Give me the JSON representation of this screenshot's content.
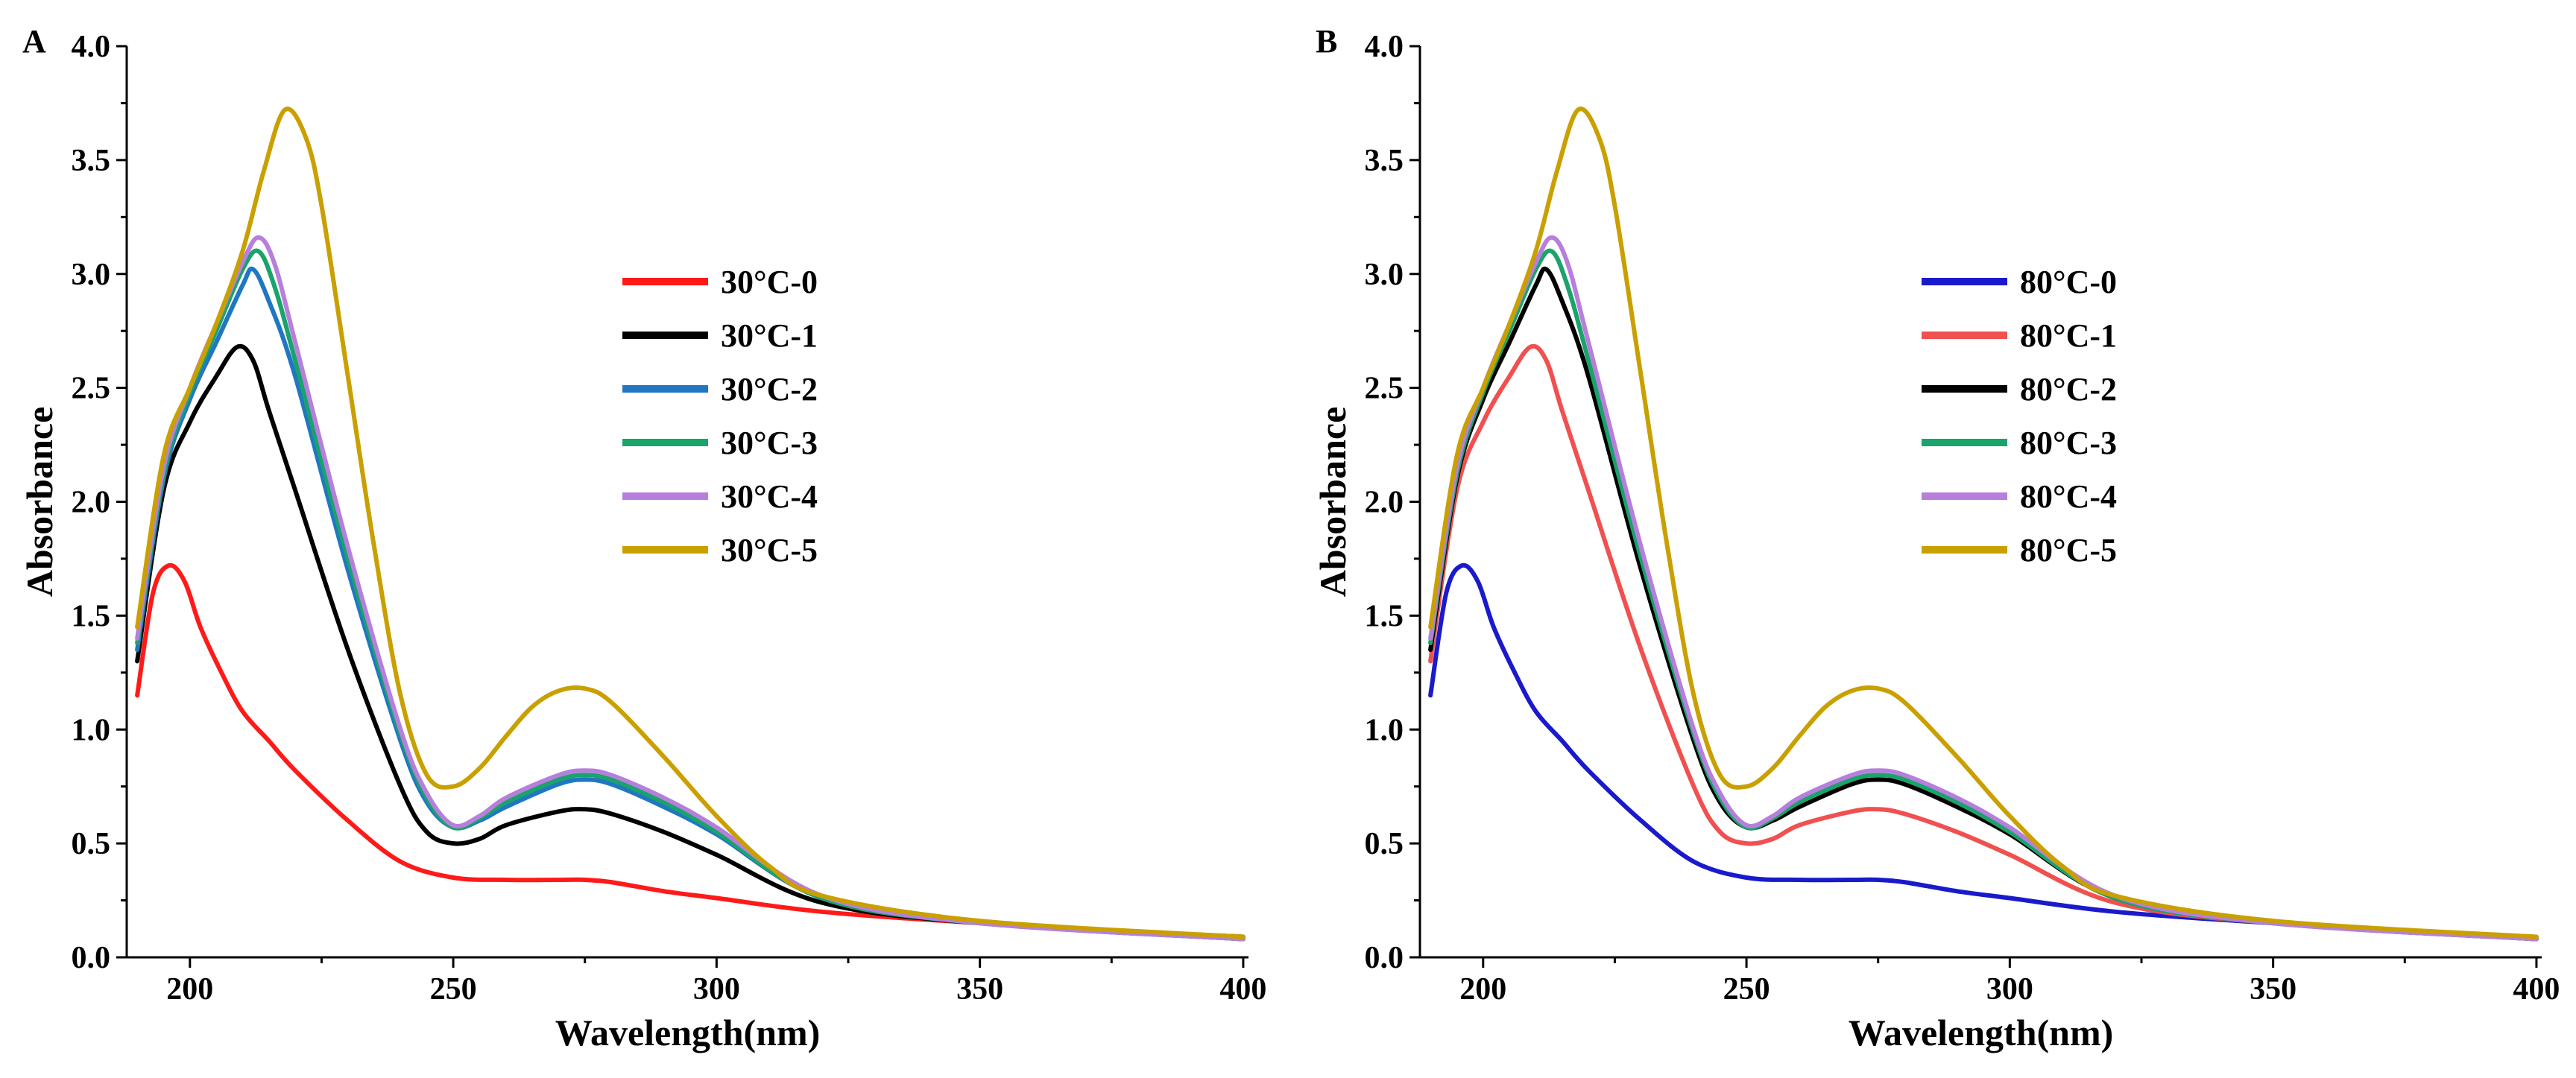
{
  "chart_data": [
    {
      "type": "line",
      "panel_label": "A",
      "xlabel": "Wavelength(nm)",
      "ylabel": "Absorbance",
      "xlim": [
        188,
        401
      ],
      "ylim": [
        0,
        4.0
      ],
      "xticks": [
        200,
        250,
        300,
        350,
        400
      ],
      "xtick_labels": [
        "200",
        "250",
        "300",
        "350",
        "400"
      ],
      "yticks": [
        0,
        0.5,
        1.0,
        1.5,
        2.0,
        2.5,
        3.0,
        3.5,
        4.0
      ],
      "ytick_labels": [
        "0.0",
        "0.5",
        "1.0",
        "1.5",
        "2.0",
        "2.5",
        "3.0",
        "3.5",
        "4.0"
      ],
      "grid": false,
      "legend_position": "upper-middle",
      "series": [
        {
          "name": "30°C-0",
          "color": "#ff1a1a",
          "x": [
            190,
            193,
            196,
            199,
            202,
            206,
            210,
            215,
            220,
            230,
            240,
            250,
            260,
            270,
            275,
            280,
            290,
            300,
            320,
            350,
            400
          ],
          "y": [
            1.15,
            1.6,
            1.72,
            1.65,
            1.45,
            1.25,
            1.08,
            0.95,
            0.82,
            0.6,
            0.42,
            0.35,
            0.34,
            0.34,
            0.34,
            0.33,
            0.29,
            0.26,
            0.2,
            0.15,
            0.08
          ]
        },
        {
          "name": "30°C-1",
          "color": "#000000",
          "x": [
            190,
            195,
            200,
            205,
            209,
            212,
            215,
            220,
            230,
            240,
            245,
            250,
            255,
            260,
            270,
            275,
            280,
            290,
            300,
            320,
            350,
            400
          ],
          "y": [
            1.3,
            2.05,
            2.35,
            2.55,
            2.68,
            2.62,
            2.4,
            2.05,
            1.35,
            0.75,
            0.55,
            0.5,
            0.52,
            0.58,
            0.64,
            0.65,
            0.63,
            0.55,
            0.45,
            0.24,
            0.15,
            0.09
          ]
        },
        {
          "name": "30°C-2",
          "color": "#1f77c4",
          "x": [
            190,
            195,
            200,
            205,
            210,
            212,
            215,
            220,
            230,
            240,
            245,
            250,
            255,
            260,
            270,
            275,
            280,
            290,
            300,
            320,
            350,
            400
          ],
          "y": [
            1.35,
            2.1,
            2.45,
            2.7,
            2.95,
            3.02,
            2.88,
            2.55,
            1.7,
            0.95,
            0.68,
            0.57,
            0.6,
            0.66,
            0.76,
            0.78,
            0.76,
            0.66,
            0.54,
            0.26,
            0.15,
            0.08
          ]
        },
        {
          "name": "30°C-3",
          "color": "#1aa36b",
          "x": [
            190,
            195,
            200,
            205,
            210,
            213,
            216,
            220,
            230,
            240,
            245,
            250,
            255,
            260,
            270,
            275,
            280,
            290,
            300,
            320,
            350,
            400
          ],
          "y": [
            1.38,
            2.12,
            2.48,
            2.75,
            3.02,
            3.1,
            2.95,
            2.62,
            1.75,
            0.98,
            0.7,
            0.57,
            0.61,
            0.68,
            0.78,
            0.8,
            0.78,
            0.68,
            0.55,
            0.26,
            0.15,
            0.08
          ]
        },
        {
          "name": "30°C-4",
          "color": "#b77fdc",
          "x": [
            190,
            195,
            200,
            205,
            210,
            213,
            216,
            220,
            230,
            240,
            245,
            250,
            255,
            260,
            270,
            275,
            280,
            290,
            300,
            320,
            350,
            400
          ],
          "y": [
            1.4,
            2.15,
            2.5,
            2.78,
            3.05,
            3.16,
            3.05,
            2.7,
            1.8,
            1.0,
            0.72,
            0.58,
            0.62,
            0.7,
            0.8,
            0.82,
            0.8,
            0.7,
            0.57,
            0.27,
            0.15,
            0.08
          ]
        },
        {
          "name": "30°C-5",
          "color": "#c9a000",
          "x": [
            190,
            195,
            200,
            205,
            210,
            214,
            218,
            222,
            225,
            230,
            235,
            240,
            245,
            250,
            255,
            260,
            265,
            270,
            275,
            280,
            290,
            300,
            310,
            320,
            350,
            400
          ],
          "y": [
            1.45,
            2.2,
            2.5,
            2.78,
            3.1,
            3.45,
            3.72,
            3.6,
            3.3,
            2.55,
            1.8,
            1.15,
            0.8,
            0.75,
            0.83,
            0.97,
            1.1,
            1.17,
            1.18,
            1.12,
            0.88,
            0.62,
            0.4,
            0.27,
            0.16,
            0.09
          ]
        }
      ]
    },
    {
      "type": "line",
      "panel_label": "B",
      "xlabel": "Wavelength(nm)",
      "ylabel": "Absorbance",
      "xlim": [
        188,
        401
      ],
      "ylim": [
        0,
        4.0
      ],
      "xticks": [
        200,
        250,
        300,
        350,
        400
      ],
      "xtick_labels": [
        "200",
        "250",
        "300",
        "350",
        "400"
      ],
      "yticks": [
        0,
        0.5,
        1.0,
        1.5,
        2.0,
        2.5,
        3.0,
        3.5,
        4.0
      ],
      "ytick_labels": [
        "0.0",
        "0.5",
        "1.0",
        "1.5",
        "2.0",
        "2.5",
        "3.0",
        "3.5",
        "4.0"
      ],
      "grid": false,
      "legend_position": "upper-middle",
      "series": [
        {
          "name": "80°C-0",
          "color": "#1a1acc",
          "x": [
            190,
            193,
            196,
            199,
            202,
            206,
            210,
            215,
            220,
            230,
            240,
            250,
            260,
            270,
            275,
            280,
            290,
            300,
            320,
            350,
            400
          ],
          "y": [
            1.15,
            1.6,
            1.72,
            1.65,
            1.45,
            1.25,
            1.08,
            0.95,
            0.82,
            0.6,
            0.42,
            0.35,
            0.34,
            0.34,
            0.34,
            0.33,
            0.29,
            0.26,
            0.2,
            0.15,
            0.08
          ]
        },
        {
          "name": "80°C-1",
          "color": "#f0504f",
          "x": [
            190,
            195,
            200,
            205,
            209,
            212,
            215,
            220,
            230,
            240,
            245,
            250,
            255,
            260,
            270,
            275,
            280,
            290,
            300,
            320,
            350,
            400
          ],
          "y": [
            1.3,
            2.05,
            2.35,
            2.55,
            2.68,
            2.62,
            2.4,
            2.05,
            1.35,
            0.75,
            0.55,
            0.5,
            0.52,
            0.58,
            0.64,
            0.65,
            0.63,
            0.55,
            0.45,
            0.24,
            0.15,
            0.09
          ]
        },
        {
          "name": "80°C-2",
          "color": "#000000",
          "x": [
            190,
            195,
            200,
            205,
            210,
            212,
            215,
            220,
            230,
            240,
            245,
            250,
            255,
            260,
            270,
            275,
            280,
            290,
            300,
            320,
            350,
            400
          ],
          "y": [
            1.35,
            2.1,
            2.45,
            2.7,
            2.95,
            3.02,
            2.88,
            2.55,
            1.7,
            0.95,
            0.68,
            0.57,
            0.6,
            0.66,
            0.76,
            0.78,
            0.76,
            0.66,
            0.54,
            0.26,
            0.15,
            0.08
          ]
        },
        {
          "name": "80°C-3",
          "color": "#1aa36b",
          "x": [
            190,
            195,
            200,
            205,
            210,
            213,
            216,
            220,
            230,
            240,
            245,
            250,
            255,
            260,
            270,
            275,
            280,
            290,
            300,
            320,
            350,
            400
          ],
          "y": [
            1.38,
            2.12,
            2.48,
            2.75,
            3.02,
            3.1,
            2.95,
            2.62,
            1.75,
            0.98,
            0.7,
            0.57,
            0.61,
            0.68,
            0.78,
            0.8,
            0.78,
            0.68,
            0.55,
            0.26,
            0.15,
            0.08
          ]
        },
        {
          "name": "80°C-4",
          "color": "#b77fdc",
          "x": [
            190,
            195,
            200,
            205,
            210,
            213,
            216,
            220,
            230,
            240,
            245,
            250,
            255,
            260,
            270,
            275,
            280,
            290,
            300,
            320,
            350,
            400
          ],
          "y": [
            1.4,
            2.15,
            2.5,
            2.78,
            3.05,
            3.16,
            3.05,
            2.7,
            1.8,
            1.0,
            0.72,
            0.58,
            0.62,
            0.7,
            0.8,
            0.82,
            0.8,
            0.7,
            0.57,
            0.27,
            0.15,
            0.08
          ]
        },
        {
          "name": "80°C-5",
          "color": "#c9a000",
          "x": [
            190,
            195,
            200,
            205,
            210,
            214,
            218,
            222,
            225,
            230,
            235,
            240,
            245,
            250,
            255,
            260,
            265,
            270,
            275,
            280,
            290,
            300,
            310,
            320,
            350,
            400
          ],
          "y": [
            1.45,
            2.2,
            2.5,
            2.78,
            3.1,
            3.45,
            3.72,
            3.6,
            3.3,
            2.55,
            1.8,
            1.15,
            0.8,
            0.75,
            0.83,
            0.97,
            1.1,
            1.17,
            1.18,
            1.12,
            0.88,
            0.62,
            0.4,
            0.27,
            0.16,
            0.09
          ]
        }
      ]
    }
  ]
}
